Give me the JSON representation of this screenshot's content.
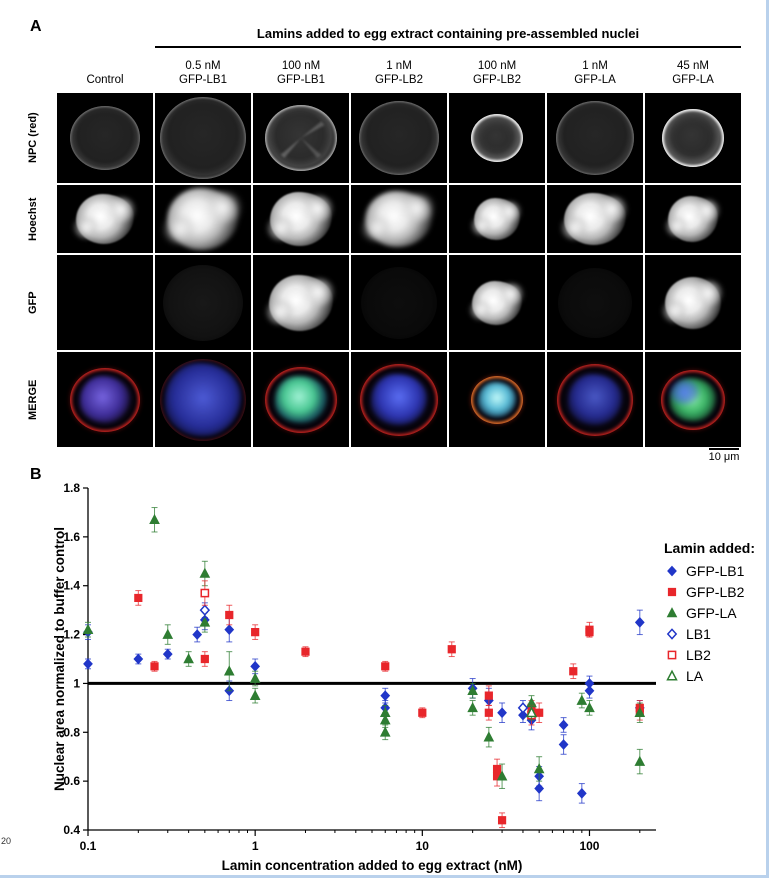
{
  "page": {
    "page_number": "20"
  },
  "panel_a": {
    "label": "A",
    "header": "Lamins added to egg extract containing pre-assembled nuclei",
    "columns": [
      {
        "line1": "Control",
        "line2": ""
      },
      {
        "line1": "0.5 nM",
        "line2": "GFP-LB1"
      },
      {
        "line1": "100 nM",
        "line2": "GFP-LB1"
      },
      {
        "line1": "1 nM",
        "line2": "GFP-LB2"
      },
      {
        "line1": "100 nM",
        "line2": "GFP-LB2"
      },
      {
        "line1": "1 nM",
        "line2": "GFP-LA"
      },
      {
        "line1": "45 nM",
        "line2": "GFP-LA"
      }
    ],
    "row_labels": [
      "NPC (red)",
      "Hoechst",
      "GFP",
      "MERGE"
    ],
    "scale_bar_label": "10 μm"
  },
  "panel_b": {
    "label": "B"
  },
  "chart_data": {
    "type": "scatter",
    "x_scale": "log",
    "xlabel": "Lamin concentration added to egg extract (nM)",
    "ylabel": "Nuclear area normalized to buffer control",
    "xlim": [
      0.1,
      250
    ],
    "ylim": [
      0.4,
      1.8
    ],
    "x_ticks": [
      0.1,
      1,
      10,
      100
    ],
    "y_ticks": [
      0.4,
      0.6,
      0.8,
      1,
      1.2,
      1.4,
      1.6,
      1.8
    ],
    "reference_line_y": 1,
    "legend_title": "Lamin added:",
    "series": [
      {
        "name": "GFP-LB1",
        "marker": "diamond",
        "fill": "filled",
        "color": "#2136c8",
        "points": [
          [
            0.1,
            1.21,
            0.03
          ],
          [
            0.1,
            1.08,
            0.02
          ],
          [
            0.2,
            1.1,
            0.02
          ],
          [
            0.3,
            1.12,
            0.02
          ],
          [
            0.45,
            1.2,
            0.03
          ],
          [
            0.5,
            1.26,
            0.04
          ],
          [
            0.7,
            1.22,
            0.05
          ],
          [
            0.7,
            0.97,
            0.04
          ],
          [
            1,
            1.07,
            0.03
          ],
          [
            6,
            0.95,
            0.03
          ],
          [
            6,
            0.9,
            0.03
          ],
          [
            20,
            0.98,
            0.04
          ],
          [
            25,
            0.93,
            0.05
          ],
          [
            30,
            0.88,
            0.04
          ],
          [
            40,
            0.87,
            0.03
          ],
          [
            45,
            0.85,
            0.04
          ],
          [
            50,
            0.62,
            0.04
          ],
          [
            50,
            0.57,
            0.05
          ],
          [
            70,
            0.83,
            0.03
          ],
          [
            70,
            0.75,
            0.04
          ],
          [
            90,
            0.55,
            0.04
          ],
          [
            100,
            1.0,
            0.03
          ],
          [
            100,
            0.97,
            0.03
          ],
          [
            200,
            1.25,
            0.05
          ],
          [
            200,
            0.9,
            0.03
          ]
        ]
      },
      {
        "name": "GFP-LB2",
        "marker": "square",
        "fill": "filled",
        "color": "#e8262b",
        "points": [
          [
            0.2,
            1.35,
            0.03
          ],
          [
            0.25,
            1.07,
            0.02
          ],
          [
            0.5,
            1.1,
            0.03
          ],
          [
            0.7,
            1.28,
            0.04
          ],
          [
            1,
            1.21,
            0.03
          ],
          [
            2,
            1.13,
            0.02
          ],
          [
            6,
            1.07,
            0.02
          ],
          [
            10,
            0.88,
            0.02
          ],
          [
            15,
            1.14,
            0.03
          ],
          [
            25,
            0.95,
            0.04
          ],
          [
            25,
            0.88,
            0.03
          ],
          [
            28,
            0.65,
            0.04
          ],
          [
            28,
            0.62,
            0.04
          ],
          [
            30,
            0.44,
            0.03
          ],
          [
            45,
            0.9,
            0.03
          ],
          [
            50,
            0.88,
            0.04
          ],
          [
            80,
            1.05,
            0.03
          ],
          [
            100,
            1.22,
            0.03
          ],
          [
            100,
            1.21,
            0.02
          ],
          [
            200,
            0.9,
            0.03
          ],
          [
            200,
            0.88,
            0.03
          ]
        ]
      },
      {
        "name": "GFP-LA",
        "marker": "triangle",
        "fill": "filled",
        "color": "#2e7d32",
        "points": [
          [
            0.1,
            1.22,
            0.03
          ],
          [
            0.25,
            1.67,
            0.05
          ],
          [
            0.3,
            1.2,
            0.04
          ],
          [
            0.4,
            1.1,
            0.03
          ],
          [
            0.5,
            1.45,
            0.05
          ],
          [
            0.5,
            1.25,
            0.04
          ],
          [
            0.7,
            1.05,
            0.08
          ],
          [
            1,
            1.02,
            0.03
          ],
          [
            1,
            0.95,
            0.03
          ],
          [
            6,
            0.88,
            0.03
          ],
          [
            6,
            0.85,
            0.03
          ],
          [
            6,
            0.8,
            0.03
          ],
          [
            20,
            0.97,
            0.03
          ],
          [
            20,
            0.9,
            0.03
          ],
          [
            25,
            0.78,
            0.04
          ],
          [
            30,
            0.62,
            0.05
          ],
          [
            45,
            0.92,
            0.03
          ],
          [
            50,
            0.65,
            0.05
          ],
          [
            90,
            0.93,
            0.03
          ],
          [
            100,
            0.9,
            0.03
          ],
          [
            200,
            0.88,
            0.04
          ],
          [
            200,
            0.68,
            0.05
          ]
        ]
      },
      {
        "name": "LB1",
        "marker": "diamond",
        "fill": "open",
        "color": "#2136c8",
        "points": [
          [
            0.5,
            1.3,
            0.03
          ],
          [
            40,
            0.9,
            0.03
          ]
        ]
      },
      {
        "name": "LB2",
        "marker": "square",
        "fill": "open",
        "color": "#e8262b",
        "points": [
          [
            0.5,
            1.37,
            0.05
          ],
          [
            45,
            0.87,
            0.04
          ]
        ]
      },
      {
        "name": "LA",
        "marker": "triangle",
        "fill": "open",
        "color": "#2e7d32",
        "points": [
          [
            45,
            0.88,
            0.03
          ]
        ]
      }
    ]
  }
}
